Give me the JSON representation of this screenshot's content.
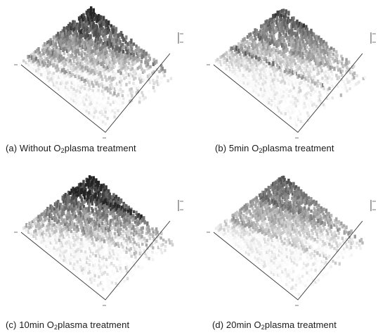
{
  "figure": {
    "panels": [
      {
        "letter": "(a)",
        "pre": "Without O",
        "sub": "2",
        "post": "plasma  treatment"
      },
      {
        "letter": "(b)",
        "pre": "5min  O",
        "sub": "2",
        "post": "plasma  treatment"
      },
      {
        "letter": "(c)",
        "pre": "10min  O",
        "sub": "2",
        "post": "plasma  treatment"
      },
      {
        "letter": "(d)",
        "pre": "20min  O",
        "sub": "2",
        "post": "plasma  treatment"
      }
    ]
  }
}
